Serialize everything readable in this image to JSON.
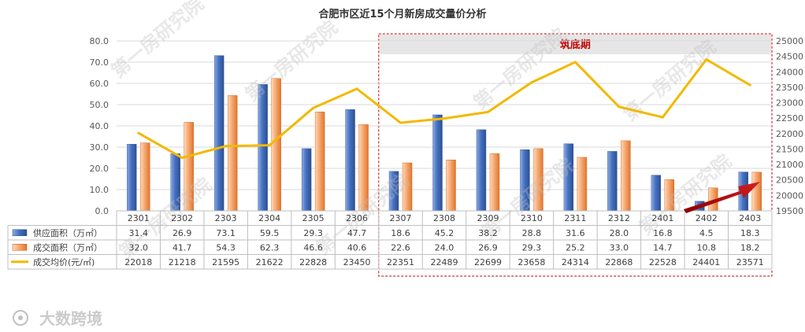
{
  "watermark": "第一房研究院",
  "logo_text": "大数跨境",
  "highlight_label": "筑底期",
  "chart_data": {
    "type": "bar",
    "title": "合肥市区近15个月新房成交量价分析",
    "categories": [
      "2301",
      "2302",
      "2303",
      "2304",
      "2305",
      "2306",
      "2307",
      "2308",
      "2309",
      "2310",
      "2311",
      "2312",
      "2401",
      "2402",
      "2403"
    ],
    "series": [
      {
        "name": "供应面积（万㎡）",
        "type": "bar",
        "axis": "left",
        "color": "#4472C4",
        "values": [
          31.4,
          26.9,
          73.1,
          59.5,
          29.3,
          47.7,
          18.6,
          45.2,
          38.2,
          28.8,
          31.6,
          28.0,
          16.8,
          4.5,
          18.3
        ]
      },
      {
        "name": "成交面积（万㎡）",
        "type": "bar",
        "axis": "left",
        "color": "#ED7D31",
        "values": [
          32.0,
          41.7,
          54.3,
          62.3,
          46.6,
          40.6,
          22.6,
          24.0,
          26.9,
          29.3,
          25.2,
          33.0,
          14.7,
          10.8,
          18.2
        ]
      },
      {
        "name": "成交均价(元/㎡)",
        "type": "line",
        "axis": "right",
        "color": "#F2B900",
        "values": [
          22018,
          21218,
          21595,
          21622,
          22828,
          23450,
          22351,
          22489,
          22699,
          23658,
          24314,
          22868,
          22528,
          24401,
          23571
        ]
      }
    ],
    "table_values": [
      [
        "31.4",
        "26.9",
        "73.1",
        "59.5",
        "29.3",
        "47.7",
        "18.6",
        "45.2",
        "38.2",
        "28.8",
        "31.6",
        "28.0",
        "16.8",
        "4.5",
        "18.3"
      ],
      [
        "32.0",
        "41.7",
        "54.3",
        "62.3",
        "46.6",
        "40.6",
        "22.6",
        "24.0",
        "26.9",
        "29.3",
        "25.2",
        "33.0",
        "14.7",
        "10.8",
        "18.2"
      ],
      [
        "22018",
        "21218",
        "21595",
        "21622",
        "22828",
        "23450",
        "22351",
        "22489",
        "22699",
        "23658",
        "24314",
        "22868",
        "22528",
        "24401",
        "23571"
      ]
    ],
    "y_left": {
      "min": 0,
      "max": 80,
      "step": 10,
      "tick_labels": [
        "0.0",
        "10.0",
        "20.0",
        "30.0",
        "40.0",
        "50.0",
        "60.0",
        "70.0",
        "80.0"
      ]
    },
    "y_right": {
      "min": 19500,
      "max": 25000,
      "step": 500,
      "tick_labels": [
        "19500",
        "20000",
        "20500",
        "21000",
        "21500",
        "22000",
        "22500",
        "23000",
        "23500",
        "24000",
        "24500",
        "25000"
      ]
    },
    "grid": true,
    "legend": "table",
    "highlight_range": [
      "2307",
      "2403"
    ]
  }
}
